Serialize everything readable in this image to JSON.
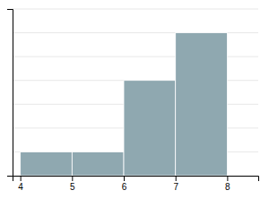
{
  "chart_data": {
    "type": "histogram",
    "bins": [
      4,
      5,
      6,
      7,
      8
    ],
    "values": [
      1,
      1,
      4,
      6
    ],
    "color": "#8fa8b0",
    "xlim": [
      3.85,
      8.6
    ],
    "ylim": [
      0,
      7
    ],
    "xticks": [
      4,
      5,
      6,
      7,
      8
    ],
    "yticks": [
      1,
      2,
      3,
      4,
      5,
      6,
      7
    ],
    "grid": true,
    "tick_labels": "x"
  }
}
